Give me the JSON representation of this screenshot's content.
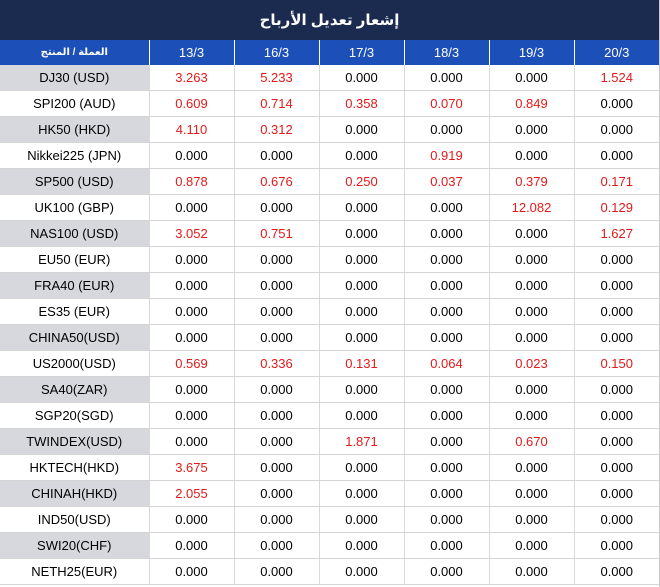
{
  "title": "إشعار تعديل الأرباح",
  "header": {
    "instrument_label": "العملة / المنتج",
    "dates": [
      "13/3",
      "16/3",
      "17/3",
      "18/3",
      "19/3",
      "20/3"
    ]
  },
  "colors": {
    "title_bg": "#1b2a4f",
    "header_bg": "#1d4fb8",
    "highlight_text": "#e31a1a",
    "normal_text": "#000000",
    "alt_row_label_bg": "#d6d8de"
  },
  "rows": [
    {
      "instrument": "DJ30 (USD)",
      "values": [
        "3.263",
        "5.233",
        "0.000",
        "0.000",
        "0.000",
        "1.524"
      ]
    },
    {
      "instrument": "SPI200 (AUD)",
      "values": [
        "0.609",
        "0.714",
        "0.358",
        "0.070",
        "0.849",
        "0.000"
      ]
    },
    {
      "instrument": "HK50 (HKD)",
      "values": [
        "4.110",
        "0.312",
        "0.000",
        "0.000",
        "0.000",
        "0.000"
      ]
    },
    {
      "instrument": "Nikkei225 (JPN)",
      "values": [
        "0.000",
        "0.000",
        "0.000",
        "0.919",
        "0.000",
        "0.000"
      ]
    },
    {
      "instrument": "SP500 (USD)",
      "values": [
        "0.878",
        "0.676",
        "0.250",
        "0.037",
        "0.379",
        "0.171"
      ]
    },
    {
      "instrument": "UK100 (GBP)",
      "values": [
        "0.000",
        "0.000",
        "0.000",
        "0.000",
        "12.082",
        "0.129"
      ]
    },
    {
      "instrument": "NAS100 (USD)",
      "values": [
        "3.052",
        "0.751",
        "0.000",
        "0.000",
        "0.000",
        "1.627"
      ]
    },
    {
      "instrument": "EU50 (EUR)",
      "values": [
        "0.000",
        "0.000",
        "0.000",
        "0.000",
        "0.000",
        "0.000"
      ]
    },
    {
      "instrument": "FRA40 (EUR)",
      "values": [
        "0.000",
        "0.000",
        "0.000",
        "0.000",
        "0.000",
        "0.000"
      ]
    },
    {
      "instrument": "ES35 (EUR)",
      "values": [
        "0.000",
        "0.000",
        "0.000",
        "0.000",
        "0.000",
        "0.000"
      ]
    },
    {
      "instrument": "CHINA50(USD)",
      "values": [
        "0.000",
        "0.000",
        "0.000",
        "0.000",
        "0.000",
        "0.000"
      ]
    },
    {
      "instrument": "US2000(USD)",
      "values": [
        "0.569",
        "0.336",
        "0.131",
        "0.064",
        "0.023",
        "0.150"
      ]
    },
    {
      "instrument": "SA40(ZAR)",
      "values": [
        "0.000",
        "0.000",
        "0.000",
        "0.000",
        "0.000",
        "0.000"
      ]
    },
    {
      "instrument": "SGP20(SGD)",
      "values": [
        "0.000",
        "0.000",
        "0.000",
        "0.000",
        "0.000",
        "0.000"
      ]
    },
    {
      "instrument": "TWINDEX(USD)",
      "values": [
        "0.000",
        "0.000",
        "1.871",
        "0.000",
        "0.670",
        "0.000"
      ]
    },
    {
      "instrument": "HKTECH(HKD)",
      "values": [
        "3.675",
        "0.000",
        "0.000",
        "0.000",
        "0.000",
        "0.000"
      ]
    },
    {
      "instrument": "CHINAH(HKD)",
      "values": [
        "2.055",
        "0.000",
        "0.000",
        "0.000",
        "0.000",
        "0.000"
      ]
    },
    {
      "instrument": "IND50(USD)",
      "values": [
        "0.000",
        "0.000",
        "0.000",
        "0.000",
        "0.000",
        "0.000"
      ]
    },
    {
      "instrument": "SWI20(CHF)",
      "values": [
        "0.000",
        "0.000",
        "0.000",
        "0.000",
        "0.000",
        "0.000"
      ]
    },
    {
      "instrument": "NETH25(EUR)",
      "values": [
        "0.000",
        "0.000",
        "0.000",
        "0.000",
        "0.000",
        "0.000"
      ]
    }
  ]
}
